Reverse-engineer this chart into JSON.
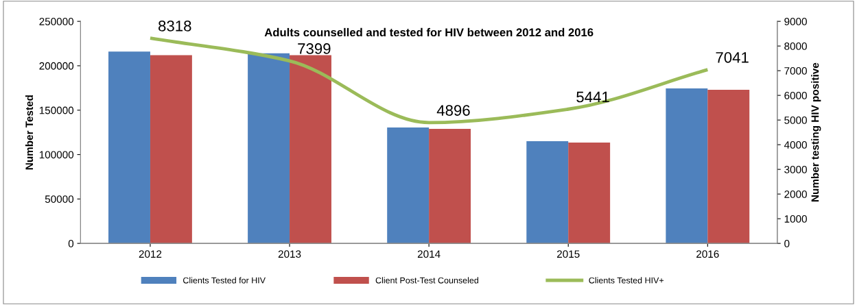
{
  "chart_data": {
    "type": "bar",
    "title": "Adults counselled and tested for HIV between 2012 and 2016",
    "categories": [
      "2012",
      "2013",
      "2014",
      "2015",
      "2016"
    ],
    "series": [
      {
        "name": "Clients Tested for HIV",
        "color": "#4f81bd",
        "values": [
          216000,
          214000,
          130500,
          115000,
          174500
        ]
      },
      {
        "name": "Client Post-Test Counseled",
        "color": "#c0504d",
        "values": [
          212000,
          212000,
          129000,
          113500,
          173000
        ]
      },
      {
        "name": "Clients Tested HIV+",
        "type": "line",
        "axis": "y2",
        "color": "#9bbb59",
        "values": [
          8318,
          7399,
          4896,
          5441,
          7041
        ],
        "value_labels": [
          "8318",
          "7399",
          "4896",
          "5441",
          "7041"
        ]
      }
    ],
    "ylabel": "Number Tested",
    "y2label": "Number testing HIV positive",
    "ylim": [
      0,
      250000
    ],
    "yticks": [
      0,
      50000,
      100000,
      150000,
      200000,
      250000
    ],
    "y2lim": [
      0,
      9000
    ],
    "y2ticks": [
      0,
      1000,
      2000,
      3000,
      4000,
      5000,
      6000,
      7000,
      8000,
      9000
    ],
    "grid": false,
    "legend": "bottom",
    "marker": "none",
    "line_style": "solid"
  }
}
